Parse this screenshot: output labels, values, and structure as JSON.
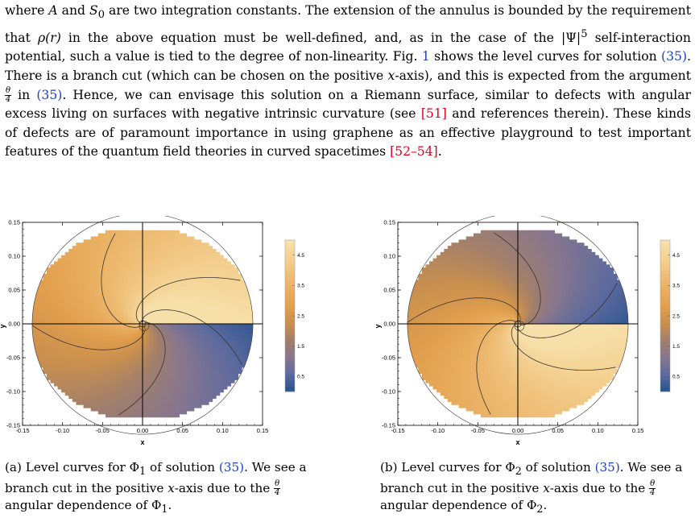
{
  "paragraph": {
    "s1": "where ",
    "m_A": "A",
    "s2": " and ",
    "m_S0": "S",
    "m_S0_sub": "0",
    "s3": " are two integration constants. The extension of the annulus is bounded by the requirement that ",
    "m_rho": "ρ(r)",
    "s4": " in the above equation must be well-defined, and, as in the case of the ",
    "m_psi": "|Ψ|",
    "m_psi_sup": "5",
    "s5": " self-interaction potential, such a value is tied to the degree of non-linearity. Fig. ",
    "fig_ref": "1",
    "s6": " shows the level curves for solution ",
    "eq_ref1": "(35)",
    "s7": ". There is a branch cut (which can be chosen on the positive ",
    "m_x": "x",
    "s8": "-axis), and this is expected from the argument ",
    "frac_num": "θ",
    "frac_den": "4",
    "s9": " in ",
    "eq_ref2": "(35)",
    "s10": ". Hence, we can envisage this solution on a Riemann surface, similar to defects with angular excess living on surfaces with negative intrinsic curvature (see ",
    "cite1": "[51]",
    "s11": " and references therein). These kinds of defects are of paramount importance in using graphene as an effective playground to test important features of the quantum field theories in curved spacetimes ",
    "cite2": "[52–54]",
    "s12": "."
  },
  "figures": [
    {
      "caption": {
        "p1": "(a) Level curves for Φ",
        "sub": "1",
        "p2": " of solution ",
        "eq": "(35)",
        "p3": ". We see a branch cut in the positive ",
        "x": "x",
        "p4": "-axis due to the ",
        "fnum": "θ",
        "fden": "4",
        "p5": " angular dependence of Φ",
        "sub2": "1",
        "p6": "."
      },
      "chart_data": {
        "type": "heatmap",
        "variant": "polar-level-curves",
        "field": "Φ1",
        "xlabel": "x",
        "ylabel": "y",
        "xlim": [
          -0.15,
          0.15
        ],
        "ylim": [
          -0.15,
          0.15
        ],
        "x_ticks": [
          "-0.15",
          "-0.10",
          "-0.05",
          "0.00",
          "0.05",
          "0.10",
          "0.15"
        ],
        "y_ticks": [
          "0.15",
          "0.10",
          "0.05",
          "0.00",
          "-0.05",
          "-0.10",
          "-0.15"
        ],
        "outer_radius": 0.138,
        "inner_radius": 0.003,
        "branch_cut": "positive x-axis",
        "angle_start_deg": 0,
        "angle_direction": "clockwise",
        "value_at_cut_start": 0.2,
        "value_at_cut_end": 4.9,
        "colorbar_ticks": [
          "4.5",
          "3.5",
          "2.5",
          "1.5",
          "0.5"
        ],
        "colorbar_range": [
          0,
          5
        ]
      }
    },
    {
      "caption": {
        "p1": "(b) Level curves for Φ",
        "sub": "2",
        "p2": " of solution ",
        "eq": "(35)",
        "p3": ". We see a branch cut in the positive ",
        "x": "x",
        "p4": "-axis due to the ",
        "fnum": "θ",
        "fden": "4",
        "p5": " angular dependence of Φ",
        "sub2": "2",
        "p6": "."
      },
      "chart_data": {
        "type": "heatmap",
        "variant": "polar-level-curves",
        "field": "Φ2",
        "xlabel": "x",
        "ylabel": "y",
        "xlim": [
          -0.15,
          0.15
        ],
        "ylim": [
          -0.15,
          0.15
        ],
        "x_ticks": [
          "-0.15",
          "-0.10",
          "-0.05",
          "0.00",
          "0.05",
          "0.10",
          "0.15"
        ],
        "y_ticks": [
          "0.15",
          "0.10",
          "0.05",
          "0.00",
          "-0.05",
          "-0.10",
          "-0.15"
        ],
        "outer_radius": 0.138,
        "inner_radius": 0.003,
        "branch_cut": "positive x-axis",
        "angle_start_deg": 0,
        "angle_direction": "counterclockwise",
        "value_at_cut_start": 0.2,
        "value_at_cut_end": 4.9,
        "colorbar_ticks": [
          "4.5",
          "3.5",
          "2.5",
          "1.5",
          "0.5"
        ],
        "colorbar_range": [
          0,
          5
        ]
      }
    }
  ],
  "colors": {
    "ref_red": "#e0001b",
    "eq_blue": "#1e3fc8",
    "colormap": [
      "#24518f",
      "#5c6a9e",
      "#86768f",
      "#a17f6c",
      "#c88f4f",
      "#e09e4d",
      "#e9ae60",
      "#efc07a",
      "#f4d293",
      "#f8e2ae"
    ]
  }
}
